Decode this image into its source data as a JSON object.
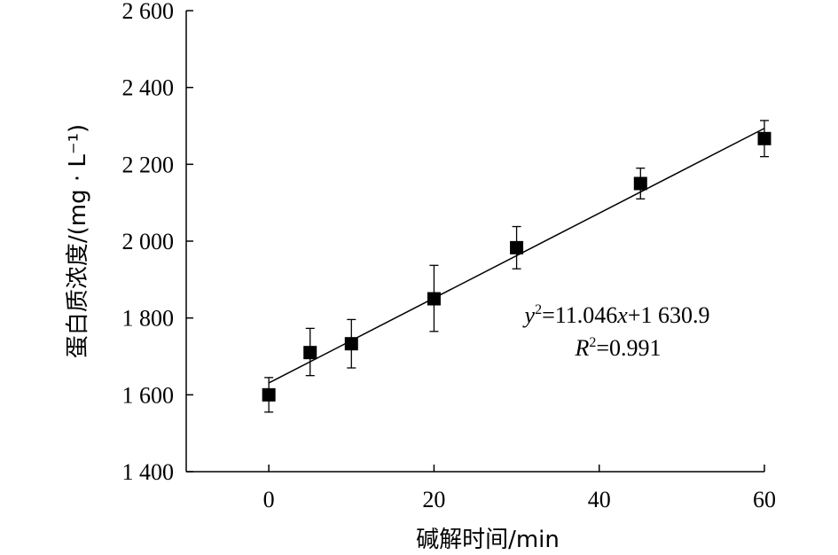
{
  "chart_data": {
    "type": "scatter",
    "xlabel": "碱解时间/min",
    "ylabel": "蛋白质浓度/(mg · L⁻¹)",
    "xlim": [
      -10,
      60
    ],
    "ylim": [
      1400,
      2600
    ],
    "xticks": [
      0,
      20,
      40,
      60
    ],
    "xtick_labels": [
      "0",
      "20",
      "40",
      "60"
    ],
    "yticks": [
      1400,
      1600,
      1800,
      2000,
      2200,
      2400,
      2600
    ],
    "ytick_labels": [
      "1 400",
      "1 600",
      "1 800",
      "2 000",
      "2 200",
      "2 400",
      "2 600"
    ],
    "grid": false,
    "series": [
      {
        "points": [
          {
            "x": 0,
            "y": 1600,
            "err_low": 1555,
            "err_high": 1645
          },
          {
            "x": 5,
            "y": 1710,
            "err_low": 1650,
            "err_high": 1773
          },
          {
            "x": 10,
            "y": 1733,
            "err_low": 1670,
            "err_high": 1796
          },
          {
            "x": 20,
            "y": 1850,
            "err_low": 1765,
            "err_high": 1937
          },
          {
            "x": 30,
            "y": 1983,
            "err_low": 1928,
            "err_high": 2038
          },
          {
            "x": 45,
            "y": 2150,
            "err_low": 2110,
            "err_high": 2190
          },
          {
            "x": 60,
            "y": 2267,
            "err_low": 2220,
            "err_high": 2314
          }
        ]
      }
    ],
    "fit": {
      "slope": 11.046,
      "intercept": 1630.9,
      "x_range": [
        0,
        60
      ]
    },
    "annotations": {
      "equation": {
        "y_var": "y",
        "y_sup": "2",
        "eq_mid": "=11.046",
        "x_var": "x",
        "eq_tail": "+1 630.9"
      },
      "r_squared": {
        "r_var": "R",
        "r_sup": "2",
        "r_tail": "=0.991"
      }
    }
  }
}
